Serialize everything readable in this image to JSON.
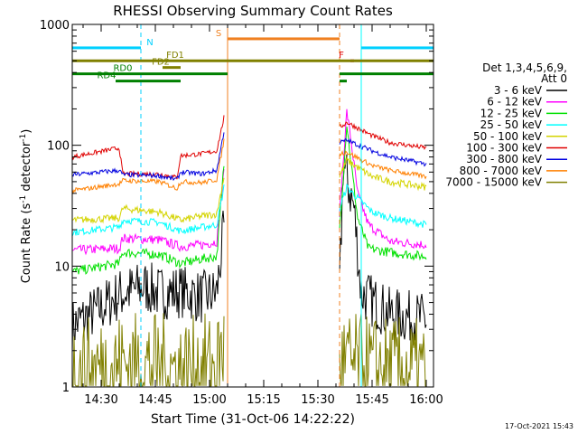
{
  "chart_data": {
    "type": "line",
    "title": "RHESSI Observing Summary Count Rates",
    "xlabel": "Start Time (31-Oct-06 14:22:22)",
    "ylabel": "Count Rate (s",
    "ylabel_sup": "-1",
    "ylabel_tail": " detector",
    "ylabel_sup2": "-1",
    "ylabel_end": ")",
    "yscale": "log",
    "ylim": [
      1,
      1000
    ],
    "xlim": [
      "14:22",
      "16:02"
    ],
    "x_ticks": [
      "14:30",
      "14:45",
      "15:00",
      "15:15",
      "15:30",
      "15:45",
      "16:00"
    ],
    "y_ticks": [
      "1",
      "10",
      "100",
      "1000"
    ],
    "timestamp": "17-Oct-2021 15:43",
    "legend": {
      "placement": "right",
      "header1": "Det 1,3,4,5,6,9,",
      "header2": "Att 0",
      "entries": [
        {
          "label": "3 - 6 keV",
          "color": "#000000"
        },
        {
          "label": "6 - 12 keV",
          "color": "#ff00ff"
        },
        {
          "label": "12 - 25 keV",
          "color": "#00e000"
        },
        {
          "label": "25 - 50 keV",
          "color": "#00ffff"
        },
        {
          "label": "50 - 100 keV",
          "color": "#d4d400"
        },
        {
          "label": "100 - 300 keV",
          "color": "#e00000"
        },
        {
          "label": "300 - 800 keV",
          "color": "#0000e0"
        },
        {
          "label": "800 - 7000 keV",
          "color": "#ff8000"
        },
        {
          "label": "7000 - 15000 keV",
          "color": "#808000"
        }
      ]
    },
    "flags": [
      {
        "label": "N",
        "color": "#00d0ff",
        "segments": [
          [
            "14:22",
            "14:41"
          ],
          [
            "15:42",
            "16:02"
          ]
        ],
        "level": 640
      },
      {
        "label": "S",
        "color": "#f08020",
        "segments": [
          [
            "15:05",
            "15:36"
          ]
        ],
        "level": 760
      },
      {
        "label": "F",
        "color": "#e00000",
        "segments": [
          [
            "15:39",
            "15:40"
          ]
        ],
        "level": 500
      },
      {
        "label": "FD1",
        "color": "#808000",
        "segments": [
          [
            "14:22",
            "16:02"
          ]
        ],
        "level": 500
      },
      {
        "label": "FD2",
        "color": "#808000",
        "segments": [
          [
            "14:47",
            "14:52"
          ]
        ],
        "level": 440
      },
      {
        "label": "RD0",
        "color": "#008000",
        "segments": [
          [
            "14:22",
            "15:05"
          ],
          [
            "15:36",
            "16:02"
          ]
        ],
        "level": 390
      },
      {
        "label": "RD4",
        "color": "#008000",
        "segments": [
          [
            "14:34",
            "14:52"
          ],
          [
            "15:36",
            "15:38"
          ]
        ],
        "level": 340
      }
    ],
    "vlines": [
      {
        "x": "14:22",
        "color": "#00ffff",
        "style": "solid"
      },
      {
        "x": "14:41",
        "color": "#00d0ff",
        "style": "dashed"
      },
      {
        "x": "15:05",
        "color": "#f08020",
        "style": "solid"
      },
      {
        "x": "15:36",
        "color": "#f08020",
        "style": "dashed"
      },
      {
        "x": "15:42",
        "color": "#00ffff",
        "style": "solid"
      },
      {
        "x": "16:02",
        "color": "#00d0ff",
        "style": "dashed"
      }
    ],
    "series": [
      {
        "name": "3 - 6 keV",
        "color": "#000000",
        "noise": 0.45,
        "points": [
          [
            "14:22",
            3.2
          ],
          [
            "14:30",
            4.5
          ],
          [
            "14:35",
            5.8
          ],
          [
            "14:42",
            6.8
          ],
          [
            "14:46",
            6.0
          ],
          [
            "14:52",
            6.2
          ],
          [
            "14:58",
            5.5
          ],
          [
            "15:02",
            6.0
          ],
          [
            "15:04",
            20
          ],
          [
            "15:36",
            6.0
          ],
          [
            "15:37",
            70
          ],
          [
            "15:39",
            40
          ],
          [
            "15:40",
            30
          ],
          [
            "15:42",
            6.0
          ],
          [
            "15:50",
            4.0
          ],
          [
            "16:00",
            3.6
          ]
        ]
      },
      {
        "name": "6 - 12 keV",
        "color": "#ff00ff",
        "noise": 0.08,
        "points": [
          [
            "14:22",
            13.5
          ],
          [
            "14:35",
            14.0
          ],
          [
            "14:36",
            17.0
          ],
          [
            "14:46",
            16.5
          ],
          [
            "14:52",
            14.5
          ],
          [
            "14:58",
            15.0
          ],
          [
            "15:02",
            16.0
          ],
          [
            "15:04",
            60
          ],
          [
            "15:36",
            28
          ],
          [
            "15:38",
            190
          ],
          [
            "15:39",
            120
          ],
          [
            "15:41",
            40
          ],
          [
            "15:44",
            22
          ],
          [
            "15:50",
            16
          ],
          [
            "16:00",
            15
          ]
        ]
      },
      {
        "name": "12 - 25 keV",
        "color": "#00e000",
        "noise": 0.08,
        "points": [
          [
            "14:22",
            9.0
          ],
          [
            "14:35",
            10.5
          ],
          [
            "14:36",
            13.0
          ],
          [
            "14:46",
            12.5
          ],
          [
            "14:52",
            10.5
          ],
          [
            "14:58",
            11.5
          ],
          [
            "15:02",
            12.0
          ],
          [
            "15:04",
            70
          ],
          [
            "15:36",
            20
          ],
          [
            "15:38",
            150
          ],
          [
            "15:39",
            80
          ],
          [
            "15:41",
            25
          ],
          [
            "15:44",
            14
          ],
          [
            "15:50",
            13
          ],
          [
            "16:00",
            12
          ]
        ]
      },
      {
        "name": "25 - 50 keV",
        "color": "#00ffff",
        "noise": 0.06,
        "points": [
          [
            "14:22",
            19
          ],
          [
            "14:35",
            21
          ],
          [
            "14:36",
            24
          ],
          [
            "14:46",
            23
          ],
          [
            "14:52",
            19.5
          ],
          [
            "14:58",
            21
          ],
          [
            "15:02",
            22
          ],
          [
            "15:04",
            45
          ],
          [
            "15:36",
            30
          ],
          [
            "15:38",
            45
          ],
          [
            "15:45",
            28
          ],
          [
            "15:50",
            25
          ],
          [
            "16:00",
            22
          ]
        ]
      },
      {
        "name": "50 - 100 keV",
        "color": "#d4d400",
        "noise": 0.06,
        "points": [
          [
            "14:22",
            24
          ],
          [
            "14:35",
            25
          ],
          [
            "14:36",
            30
          ],
          [
            "14:46",
            28
          ],
          [
            "14:52",
            24
          ],
          [
            "14:58",
            26
          ],
          [
            "15:02",
            27
          ],
          [
            "15:04",
            55
          ],
          [
            "15:36",
            55
          ],
          [
            "15:38",
            75
          ],
          [
            "15:45",
            55
          ],
          [
            "15:50",
            50
          ],
          [
            "16:00",
            45
          ]
        ]
      },
      {
        "name": "100 - 300 keV",
        "color": "#e00000",
        "noise": 0.04,
        "points": [
          [
            "14:22",
            80
          ],
          [
            "14:35",
            95
          ],
          [
            "14:36",
            58
          ],
          [
            "14:46",
            58
          ],
          [
            "14:51",
            54
          ],
          [
            "14:52",
            82
          ],
          [
            "14:58",
            85
          ],
          [
            "15:02",
            90
          ],
          [
            "15:04",
            170
          ],
          [
            "15:36",
            140
          ],
          [
            "15:38",
            155
          ],
          [
            "15:45",
            120
          ],
          [
            "15:50",
            105
          ],
          [
            "16:00",
            95
          ]
        ]
      },
      {
        "name": "300 - 800 keV",
        "color": "#0000e0",
        "noise": 0.04,
        "points": [
          [
            "14:22",
            57
          ],
          [
            "14:35",
            62
          ],
          [
            "14:36",
            57
          ],
          [
            "14:46",
            56
          ],
          [
            "14:51",
            52
          ],
          [
            "14:52",
            60
          ],
          [
            "14:58",
            58
          ],
          [
            "15:02",
            62
          ],
          [
            "15:04",
            130
          ],
          [
            "15:36",
            105
          ],
          [
            "15:38",
            110
          ],
          [
            "15:45",
            90
          ],
          [
            "15:50",
            80
          ],
          [
            "16:00",
            70
          ]
        ]
      },
      {
        "name": "800 - 7000 keV",
        "color": "#ff8000",
        "noise": 0.04,
        "points": [
          [
            "14:22",
            42
          ],
          [
            "14:35",
            48
          ],
          [
            "14:36",
            51
          ],
          [
            "14:46",
            50
          ],
          [
            "14:51",
            44
          ],
          [
            "14:52",
            50
          ],
          [
            "14:58",
            49
          ],
          [
            "15:02",
            52
          ],
          [
            "15:04",
            110
          ],
          [
            "15:36",
            85
          ],
          [
            "15:38",
            88
          ],
          [
            "15:45",
            68
          ],
          [
            "15:50",
            62
          ],
          [
            "16:00",
            55
          ]
        ]
      },
      {
        "name": "7000 - 15000 keV",
        "color": "#808000",
        "noise": 0.0,
        "points": [
          [
            "14:22",
            2.2
          ],
          [
            "14:27",
            2.3
          ],
          [
            "14:36",
            2.6
          ],
          [
            "14:46",
            2.5
          ],
          [
            "14:52",
            2.3
          ],
          [
            "15:02",
            2.5
          ],
          [
            "15:04",
            3.5
          ],
          [
            "15:36",
            2.6
          ],
          [
            "15:45",
            2.4
          ],
          [
            "16:00",
            2.2
          ]
        ]
      }
    ]
  }
}
